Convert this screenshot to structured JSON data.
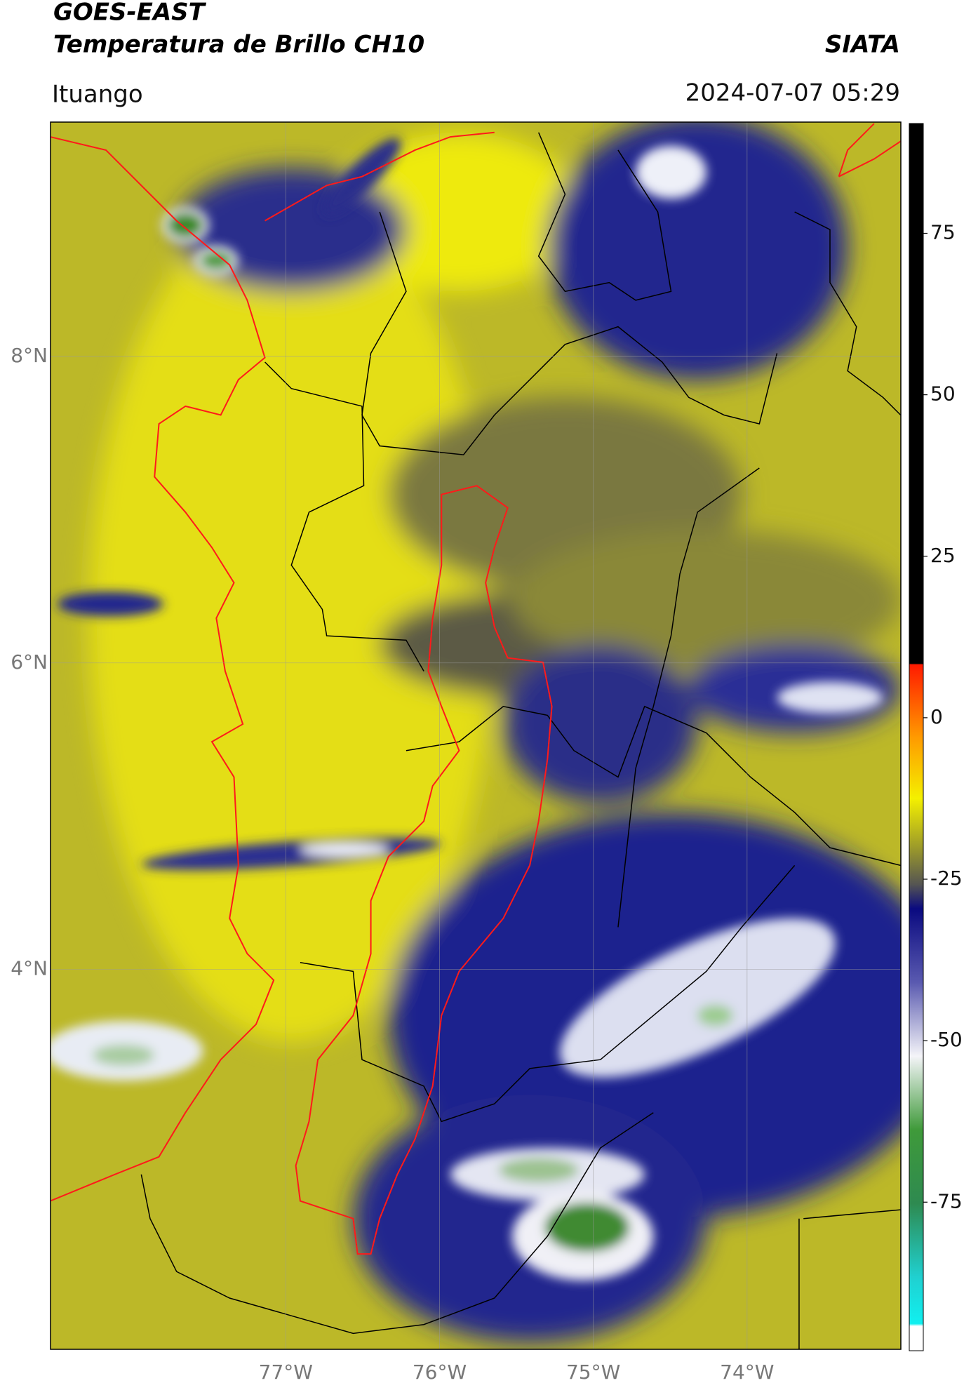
{
  "header": {
    "title": "GOES-EAST",
    "subtitle": "Temperatura de Brillo CH10",
    "brand": "SIATA",
    "location": "Ituango",
    "timestamp": "2024-07-07 05:29"
  },
  "map": {
    "xlim": [
      -78.53,
      -73.0
    ],
    "ylim": [
      1.52,
      9.53
    ],
    "xticks": [
      {
        "value": -77,
        "label": "77°W"
      },
      {
        "value": -76,
        "label": "76°W"
      },
      {
        "value": -75,
        "label": "75°W"
      },
      {
        "value": -74,
        "label": "74°W"
      }
    ],
    "yticks": [
      {
        "value": 8,
        "label": "8°N"
      },
      {
        "value": 6,
        "label": "6°N"
      },
      {
        "value": 4,
        "label": "4°N"
      }
    ]
  },
  "colorbar": {
    "lim": [
      -98,
      92
    ],
    "ticks": [
      75,
      50,
      25,
      0,
      -25,
      -50,
      -75
    ]
  }
}
